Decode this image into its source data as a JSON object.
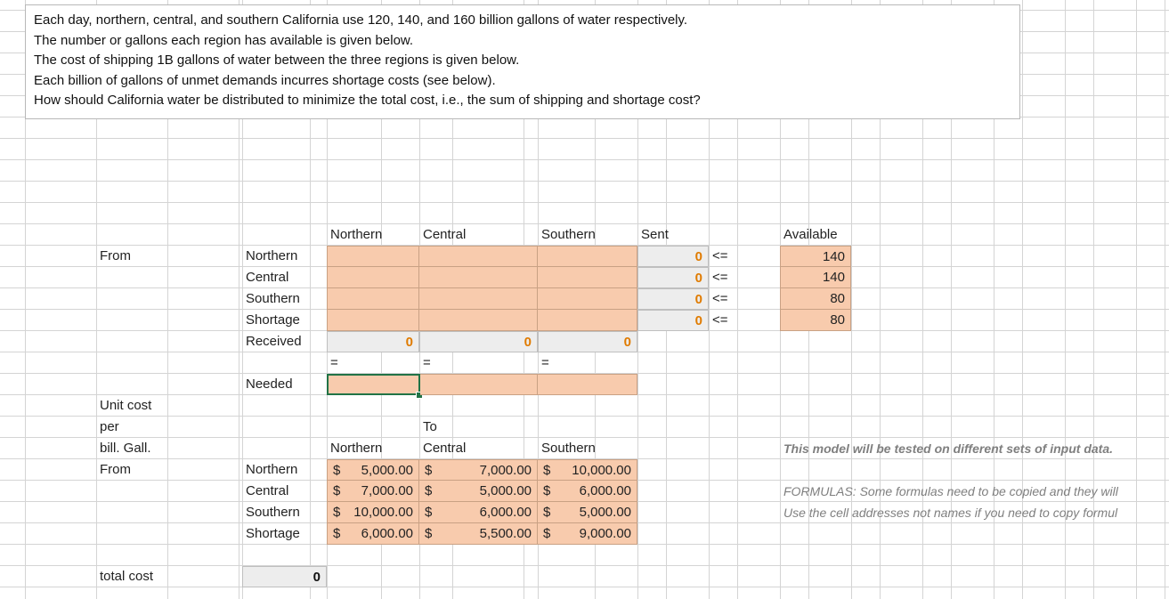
{
  "problem": {
    "lines": [
      "Each day, northern, central, and southern California use 120, 140, and 160 billion gallons of water respectively.",
      "The number or gallons each region has available is given below.",
      "The cost of shipping 1B gallons of water between the three regions is given below.",
      "Each billion of gallons of unmet demands incurres shortage costs (see  below).",
      "How should California water be distributed to minimize the total cost, i.e., the sum of shipping and shortage cost?"
    ]
  },
  "shipment": {
    "from_label": "From",
    "col_headers": [
      "Northern",
      "Central",
      "Southern"
    ],
    "sent_header": "Sent",
    "available_header": "Available",
    "rows": [
      {
        "label": "Northern",
        "sent": "0",
        "op": "<=",
        "available": "140"
      },
      {
        "label": "Central",
        "sent": "0",
        "op": "<=",
        "available": "140"
      },
      {
        "label": "Southern",
        "sent": "0",
        "op": "<=",
        "available": "80"
      },
      {
        "label": "Shortage",
        "sent": "0",
        "op": "<=",
        "available": "80"
      }
    ],
    "received_label": "Received",
    "received": [
      "0",
      "0",
      "0"
    ],
    "eq": [
      "=",
      "=",
      "="
    ],
    "needed_label": "Needed"
  },
  "costs": {
    "label_lines": [
      "Unit cost",
      "per",
      "bill. Gall.",
      "From"
    ],
    "to_label": "To",
    "col_headers": [
      "Northern",
      "Central",
      "Southern"
    ],
    "rows": [
      {
        "label": "Northern",
        "values": [
          "5,000.00",
          "7,000.00",
          "10,000.00"
        ]
      },
      {
        "label": "Central",
        "values": [
          "7,000.00",
          "5,000.00",
          "6,000.00"
        ]
      },
      {
        "label": "Southern",
        "values": [
          "10,000.00",
          "6,000.00",
          "5,000.00"
        ]
      },
      {
        "label": "Shortage",
        "values": [
          "6,000.00",
          "5,500.00",
          "9,000.00"
        ]
      }
    ],
    "currency": "$"
  },
  "notes": {
    "tested": "This model will be tested on different sets of input data.",
    "formulas1": "FORMULAS: Some formulas need to be copied and they will",
    "formulas2": "Use the cell addresses not names if you need to copy formul"
  },
  "total": {
    "label": "total cost",
    "value": "0"
  },
  "colors": {
    "input": "#f8cbad",
    "calc_text": "#e07b00",
    "select": "#217346"
  }
}
